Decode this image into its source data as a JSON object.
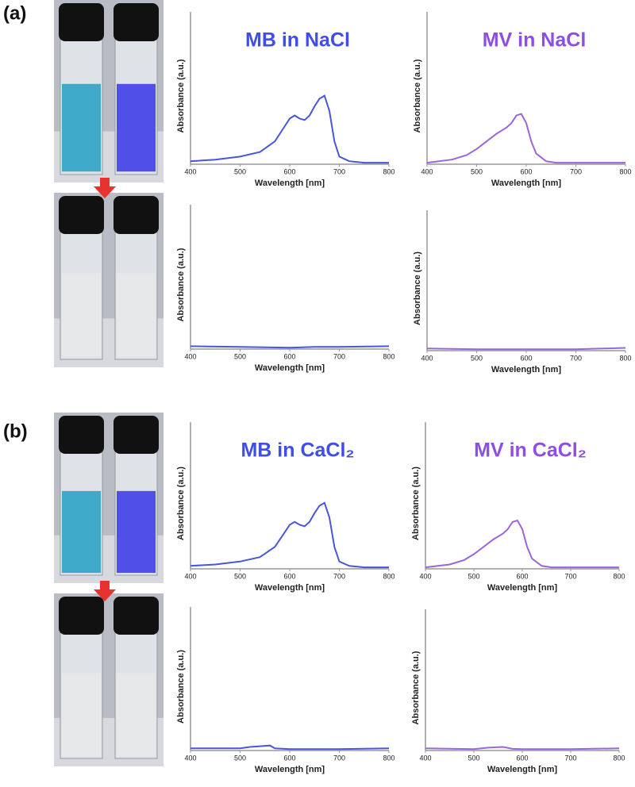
{
  "panel_labels": [
    "(a)",
    "(b)"
  ],
  "chart_data": [
    {
      "type": "line",
      "title": "MB in NaCl",
      "title_color": "#3f4ee6",
      "color": "#4a55dc",
      "xlabel": "Wavelength [nm]",
      "ylabel": "Absorbance (a.u.)",
      "xlim": [
        400,
        800
      ],
      "xticks": [
        400,
        500,
        600,
        700,
        800
      ],
      "ylim": [
        0,
        1
      ],
      "x": [
        400,
        450,
        500,
        540,
        570,
        590,
        600,
        610,
        620,
        630,
        640,
        650,
        660,
        670,
        680,
        690,
        700,
        720,
        750,
        800
      ],
      "values": [
        0.02,
        0.03,
        0.05,
        0.08,
        0.15,
        0.25,
        0.3,
        0.32,
        0.3,
        0.29,
        0.32,
        0.38,
        0.43,
        0.45,
        0.35,
        0.15,
        0.05,
        0.02,
        0.01,
        0.01
      ]
    },
    {
      "type": "line",
      "title": "MV in NaCl",
      "title_color": "#8d4fe3",
      "color": "#9966dd",
      "xlabel": "Wavelength [nm]",
      "ylabel": "Absorbance (a.u.)",
      "xlim": [
        400,
        800
      ],
      "xticks": [
        400,
        500,
        600,
        700,
        800
      ],
      "ylim": [
        0,
        1
      ],
      "x": [
        400,
        450,
        480,
        500,
        520,
        540,
        560,
        570,
        580,
        590,
        600,
        610,
        620,
        640,
        660,
        700,
        800
      ],
      "values": [
        0.01,
        0.03,
        0.06,
        0.1,
        0.15,
        0.2,
        0.24,
        0.27,
        0.32,
        0.33,
        0.27,
        0.15,
        0.07,
        0.02,
        0.01,
        0.01,
        0.01
      ]
    },
    {
      "type": "line",
      "color": "#4a55dc",
      "xlabel": "Wavelength [nm]",
      "ylabel": "Absorbance (a.u.)",
      "xlim": [
        400,
        800
      ],
      "xticks": [
        400,
        500,
        600,
        700,
        800
      ],
      "ylim": [
        0,
        1
      ],
      "x": [
        400,
        500,
        600,
        650,
        700,
        800
      ],
      "values": [
        0.02,
        0.015,
        0.01,
        0.015,
        0.015,
        0.02
      ]
    },
    {
      "type": "line",
      "color": "#9966dd",
      "xlabel": "Wavelength [nm]",
      "ylabel": "Absorbance (a.u.)",
      "xlim": [
        400,
        800
      ],
      "xticks": [
        400,
        500,
        600,
        700,
        800
      ],
      "ylim": [
        0,
        1
      ],
      "x": [
        400,
        500,
        600,
        700,
        800
      ],
      "values": [
        0.015,
        0.01,
        0.01,
        0.01,
        0.02
      ]
    },
    {
      "type": "line",
      "title": "MB in CaCl₂",
      "title_color": "#3f4ee6",
      "color": "#4a55dc",
      "xlabel": "Wavelength [nm]",
      "ylabel": "Absorbance (a.u.)",
      "xlim": [
        400,
        800
      ],
      "xticks": [
        400,
        500,
        600,
        700,
        800
      ],
      "ylim": [
        0,
        1
      ],
      "x": [
        400,
        450,
        500,
        540,
        570,
        590,
        600,
        610,
        620,
        630,
        640,
        650,
        660,
        670,
        680,
        690,
        700,
        720,
        750,
        800
      ],
      "values": [
        0.02,
        0.03,
        0.05,
        0.08,
        0.15,
        0.25,
        0.3,
        0.32,
        0.3,
        0.29,
        0.32,
        0.38,
        0.43,
        0.45,
        0.35,
        0.15,
        0.05,
        0.02,
        0.01,
        0.01
      ]
    },
    {
      "type": "line",
      "title": "MV in CaCl₂",
      "title_color": "#8d4fe3",
      "color": "#9966dd",
      "xlabel": "Wavelength [nm]",
      "ylabel": "Absorbance (a.u.)",
      "xlim": [
        400,
        800
      ],
      "xticks": [
        400,
        500,
        600,
        700,
        800
      ],
      "ylim": [
        0,
        1
      ],
      "x": [
        400,
        450,
        480,
        500,
        520,
        540,
        560,
        570,
        580,
        590,
        600,
        610,
        620,
        640,
        660,
        700,
        800
      ],
      "values": [
        0.01,
        0.03,
        0.06,
        0.1,
        0.15,
        0.2,
        0.24,
        0.27,
        0.32,
        0.33,
        0.27,
        0.15,
        0.07,
        0.02,
        0.01,
        0.01,
        0.01
      ]
    },
    {
      "type": "line",
      "color": "#4a55dc",
      "xlabel": "Wavelength [nm]",
      "ylabel": "Absorbance (a.u.)",
      "xlim": [
        400,
        800
      ],
      "xticks": [
        400,
        500,
        600,
        700,
        800
      ],
      "ylim": [
        0,
        1
      ],
      "x": [
        400,
        500,
        520,
        540,
        560,
        570,
        600,
        700,
        800
      ],
      "values": [
        0.015,
        0.015,
        0.025,
        0.03,
        0.035,
        0.015,
        0.01,
        0.01,
        0.015
      ]
    },
    {
      "type": "line",
      "color": "#9966dd",
      "xlabel": "Wavelength [nm]",
      "ylabel": "Absorbance (a.u.)",
      "xlim": [
        400,
        800
      ],
      "xticks": [
        400,
        500,
        600,
        700,
        800
      ],
      "ylim": [
        0,
        1
      ],
      "x": [
        400,
        500,
        530,
        560,
        580,
        600,
        700,
        800
      ],
      "values": [
        0.015,
        0.01,
        0.02,
        0.025,
        0.012,
        0.01,
        0.01,
        0.015
      ]
    }
  ]
}
